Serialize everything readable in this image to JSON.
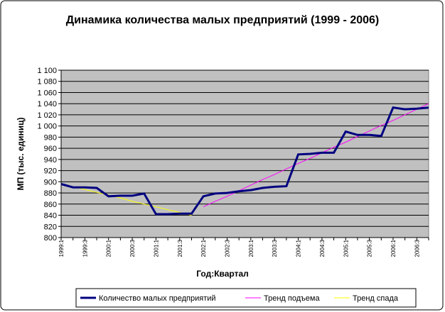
{
  "chart_data": {
    "type": "line",
    "title": "Динамика количества малых предприятий (1999 - 2006)",
    "x_label": "Год:Квартал",
    "y_label": "МП (тыс. единиц)",
    "categories": [
      "1999:1",
      null,
      "1999:3",
      null,
      "2000:1",
      null,
      "2000:3",
      null,
      "2001:1",
      null,
      "2001:3",
      null,
      "2002:1",
      null,
      "2002:3",
      null,
      "2003:1",
      null,
      "2003:3",
      null,
      "2004:1",
      null,
      "2004:3",
      null,
      "2005:1",
      null,
      "2005:3",
      null,
      "2006:1",
      null,
      "2006:3",
      null
    ],
    "series": [
      {
        "name": "Количество малых предприятий",
        "color": "#000080",
        "width": 3,
        "values": [
          896,
          890,
          890,
          889,
          874,
          875,
          875,
          879,
          842,
          842,
          843,
          843,
          874,
          879,
          880,
          883,
          885,
          889,
          891,
          892,
          949,
          950,
          952,
          952,
          990,
          984,
          984,
          982,
          1033,
          1030,
          1031,
          1033
        ]
      },
      {
        "name": "Тренд подъема",
        "color": "#ff00ff",
        "width": 1,
        "values": [
          null,
          null,
          null,
          null,
          null,
          null,
          null,
          null,
          null,
          null,
          null,
          null,
          855,
          865,
          874,
          884,
          894,
          904,
          913,
          923,
          933,
          942,
          952,
          962,
          971,
          981,
          991,
          1001,
          1010,
          1020,
          1030,
          1040
        ]
      },
      {
        "name": "Тренд спада",
        "color": "#ffff00",
        "width": 1,
        "values": [
          896,
          891,
          886,
          881,
          876,
          871,
          865,
          860,
          855,
          850,
          845,
          840,
          null,
          null,
          null,
          null,
          null,
          null,
          null,
          null,
          null,
          null,
          null,
          null,
          null,
          null,
          null,
          null,
          null,
          null,
          null,
          null
        ]
      }
    ],
    "ylim": [
      800,
      1100
    ],
    "yticks": [
      800,
      820,
      840,
      860,
      880,
      900,
      920,
      940,
      960,
      980,
      {
        "value": 1000,
        "label": "1 000"
      },
      {
        "value": 1020,
        "label": "1 020"
      },
      {
        "value": 1040,
        "label": "1 040"
      },
      {
        "value": 1060,
        "label": "1 060"
      },
      {
        "value": 1080,
        "label": "1 080"
      },
      {
        "value": 1100,
        "label": "1 100"
      }
    ],
    "grid": true
  }
}
